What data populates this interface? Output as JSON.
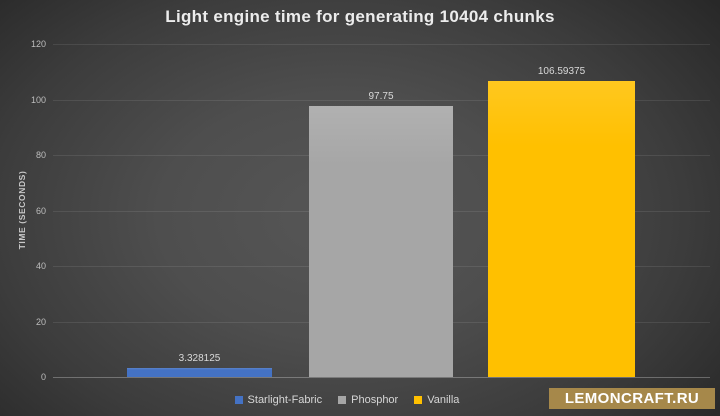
{
  "chart_data": {
    "type": "bar",
    "title": "Light engine time for generating 10404 chunks",
    "ylabel": "TIME (SECONDS)",
    "xlabel": "",
    "categories": [
      "Starlight-Fabric",
      "Phosphor",
      "Vanilla"
    ],
    "values": [
      3.328125,
      97.75,
      106.59375
    ],
    "data_labels": [
      "3.328125",
      "97.75",
      "106.59375"
    ],
    "series_colors": [
      "#4472c4",
      "#a6a6a6",
      "#ffc000"
    ],
    "ylim": [
      0,
      120
    ],
    "yticks": [
      0,
      20,
      40,
      60,
      80,
      100,
      120
    ],
    "grid": true,
    "legend_position": "bottom-center",
    "background_style": "dark-radial-gradient"
  },
  "watermark": {
    "label": "LEMONCRAFT.RU",
    "background": "#a6884a",
    "text_color": "#ffffff"
  }
}
